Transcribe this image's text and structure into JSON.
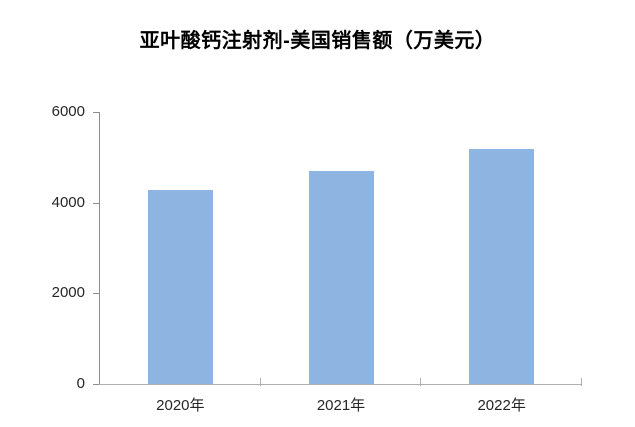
{
  "title": "亚叶酸钙注射剂-美国销售额（万美元）",
  "colors": {
    "background": "#ffffff",
    "bar": "#8EB4E2",
    "y_axis": "#8c8c8c",
    "x_axis": "#b0b0b0",
    "label_text": "#262626",
    "title_text": "#000000"
  },
  "chart_data": {
    "type": "bar",
    "title": "亚叶酸钙注射剂-美国销售额（万美元）",
    "categories": [
      "2020年",
      "2021年",
      "2022年"
    ],
    "values": [
      4280,
      4690,
      5190
    ],
    "xlabel": "",
    "ylabel": "",
    "ylim": [
      0,
      6000
    ],
    "yticks": [
      0,
      2000,
      4000,
      6000
    ],
    "grid": false,
    "legend": "none",
    "bar_color": "#8EB4E2"
  }
}
